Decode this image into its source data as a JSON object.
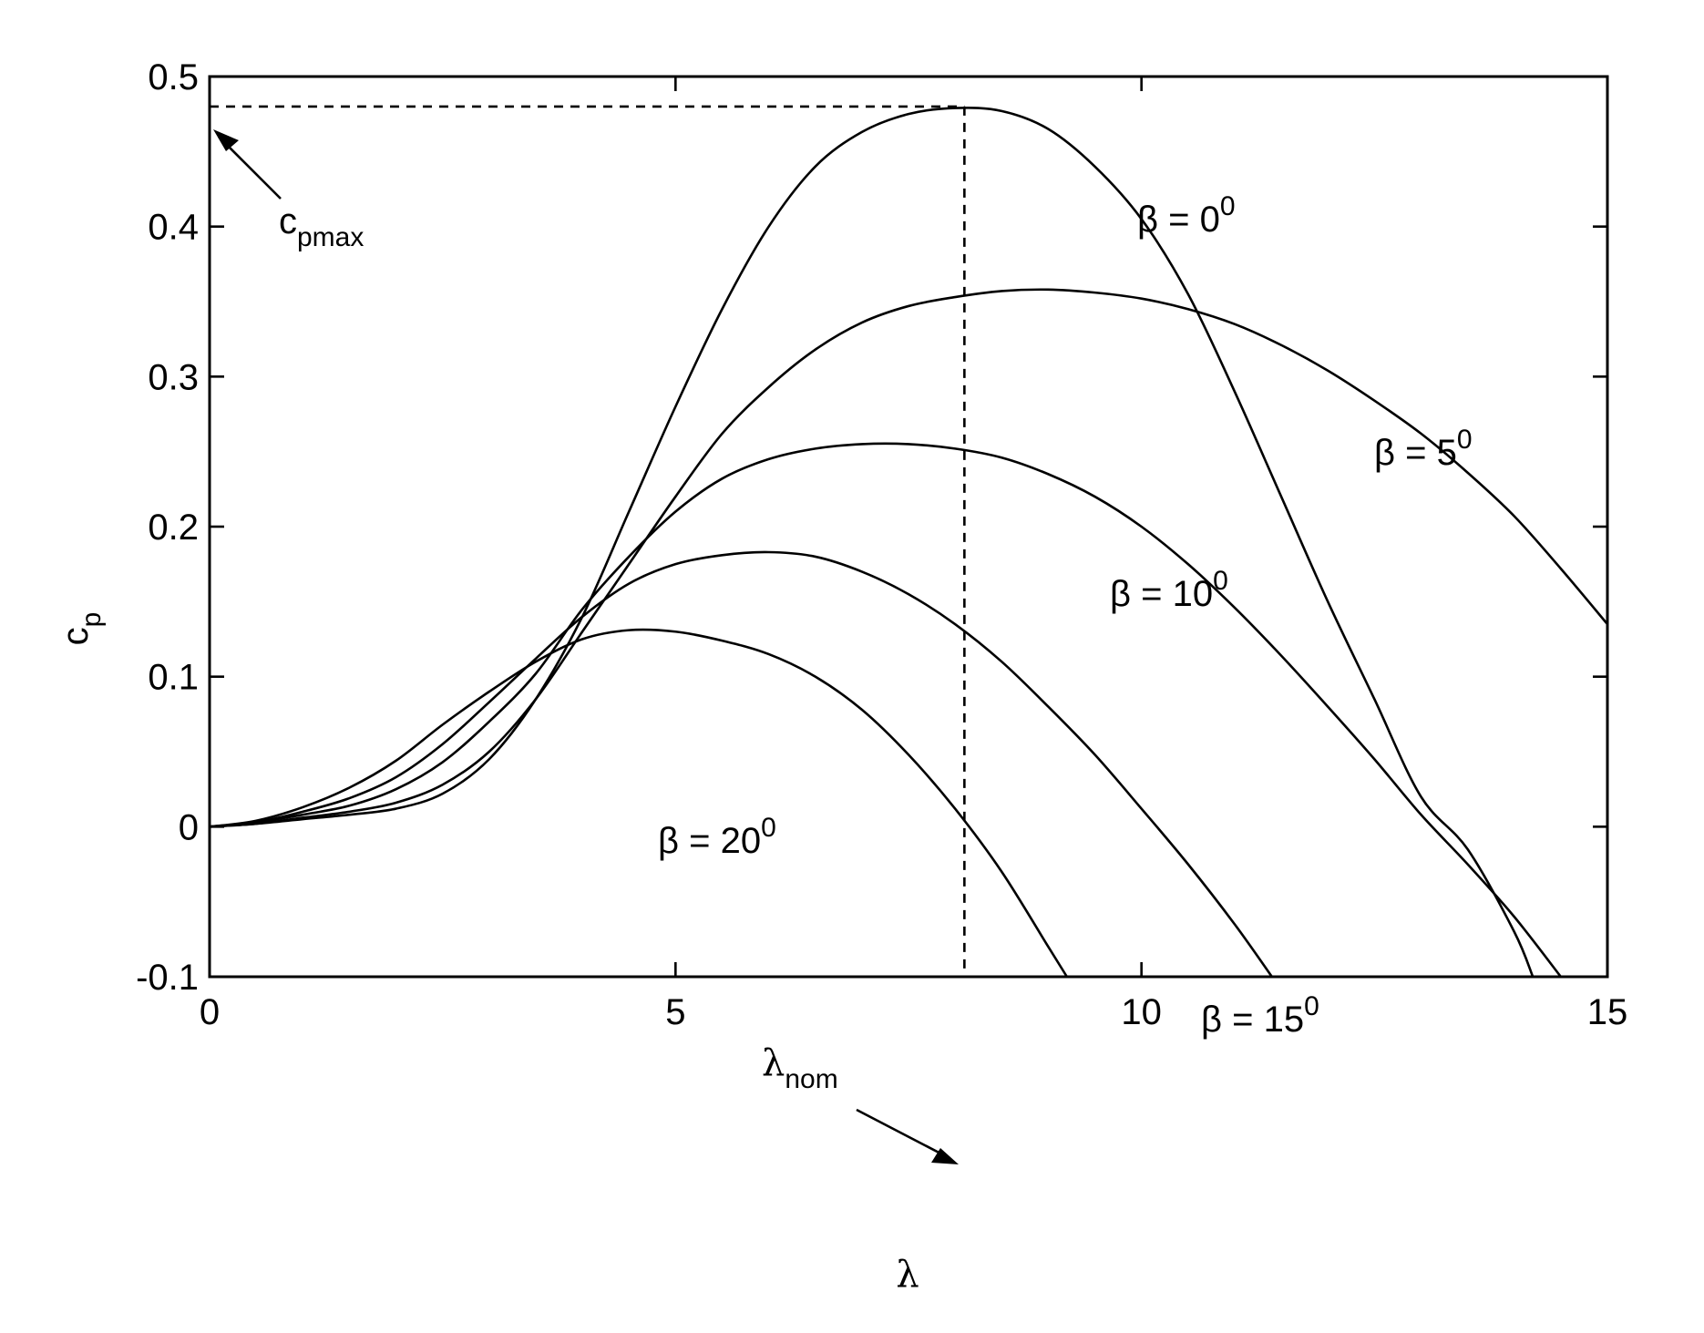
{
  "chart_data": {
    "type": "line",
    "xlabel": "λ",
    "ylabel": "c",
    "ylabel_subscript": "p",
    "xlim": [
      0,
      15
    ],
    "ylim": [
      -0.1,
      0.5
    ],
    "xticks": [
      0,
      5,
      10,
      15
    ],
    "xtick_labels": [
      "0",
      "5",
      "10",
      "15"
    ],
    "yticks": [
      -0.1,
      0,
      0.1,
      0.2,
      0.3,
      0.4,
      0.5
    ],
    "ytick_labels": [
      "-0.1",
      "0",
      "0.1",
      "0.2",
      "0.3",
      "0.4",
      "0.5"
    ],
    "grid": false,
    "series": [
      {
        "name": "β = 0",
        "label_base": "β = 0",
        "label_sup": "0",
        "points": [
          [
            0,
            0
          ],
          [
            0.5,
            0.002
          ],
          [
            1,
            0.005
          ],
          [
            1.5,
            0.008
          ],
          [
            2,
            0.012
          ],
          [
            2.5,
            0.022
          ],
          [
            3,
            0.045
          ],
          [
            3.5,
            0.085
          ],
          [
            4,
            0.14
          ],
          [
            4.5,
            0.21
          ],
          [
            5,
            0.28
          ],
          [
            5.5,
            0.345
          ],
          [
            6,
            0.4
          ],
          [
            6.5,
            0.44
          ],
          [
            7,
            0.463
          ],
          [
            7.5,
            0.475
          ],
          [
            8,
            0.479
          ],
          [
            8.5,
            0.477
          ],
          [
            9,
            0.465
          ],
          [
            9.5,
            0.44
          ],
          [
            10,
            0.405
          ],
          [
            10.5,
            0.355
          ],
          [
            11,
            0.29
          ],
          [
            11.5,
            0.22
          ],
          [
            12,
            0.15
          ],
          [
            12.5,
            0.085
          ],
          [
            13,
            0.02
          ],
          [
            13.5,
            -0.015
          ],
          [
            14,
            -0.07
          ],
          [
            14.2,
            -0.1
          ]
        ]
      },
      {
        "name": "β = 5",
        "label_base": "β = 5",
        "label_sup": "0",
        "points": [
          [
            0,
            0
          ],
          [
            0.5,
            0.002
          ],
          [
            1,
            0.006
          ],
          [
            1.5,
            0.01
          ],
          [
            2,
            0.016
          ],
          [
            2.5,
            0.028
          ],
          [
            3,
            0.05
          ],
          [
            3.5,
            0.085
          ],
          [
            4,
            0.13
          ],
          [
            4.5,
            0.175
          ],
          [
            5,
            0.22
          ],
          [
            5.5,
            0.262
          ],
          [
            6,
            0.293
          ],
          [
            6.5,
            0.318
          ],
          [
            7,
            0.336
          ],
          [
            7.5,
            0.347
          ],
          [
            8,
            0.353
          ],
          [
            8.5,
            0.357
          ],
          [
            9,
            0.358
          ],
          [
            9.5,
            0.356
          ],
          [
            10,
            0.352
          ],
          [
            10.5,
            0.345
          ],
          [
            11,
            0.335
          ],
          [
            11.5,
            0.321
          ],
          [
            12,
            0.304
          ],
          [
            12.5,
            0.284
          ],
          [
            13,
            0.262
          ],
          [
            13.5,
            0.236
          ],
          [
            14,
            0.207
          ],
          [
            14.5,
            0.172
          ],
          [
            15,
            0.135
          ]
        ]
      },
      {
        "name": "β = 10",
        "label_base": "β = 10",
        "label_sup": "0",
        "points": [
          [
            0,
            0
          ],
          [
            0.5,
            0.003
          ],
          [
            1,
            0.008
          ],
          [
            1.5,
            0.014
          ],
          [
            2,
            0.025
          ],
          [
            2.5,
            0.043
          ],
          [
            3,
            0.07
          ],
          [
            3.5,
            0.102
          ],
          [
            4,
            0.145
          ],
          [
            4.5,
            0.18
          ],
          [
            5,
            0.21
          ],
          [
            5.5,
            0.232
          ],
          [
            6,
            0.245
          ],
          [
            6.5,
            0.252
          ],
          [
            7,
            0.255
          ],
          [
            7.5,
            0.255
          ],
          [
            8,
            0.252
          ],
          [
            8.5,
            0.246
          ],
          [
            9,
            0.235
          ],
          [
            9.5,
            0.22
          ],
          [
            10,
            0.2
          ],
          [
            10.5,
            0.175
          ],
          [
            11,
            0.146
          ],
          [
            11.5,
            0.114
          ],
          [
            12,
            0.08
          ],
          [
            12.5,
            0.045
          ],
          [
            13,
            0.008
          ],
          [
            13.5,
            -0.025
          ],
          [
            14,
            -0.06
          ],
          [
            14.5,
            -0.1
          ]
        ]
      },
      {
        "name": "β = 15",
        "label_base": "β = 15",
        "label_sup": "0",
        "points": [
          [
            0,
            0
          ],
          [
            0.5,
            0.003
          ],
          [
            1,
            0.01
          ],
          [
            1.5,
            0.019
          ],
          [
            2,
            0.033
          ],
          [
            2.5,
            0.055
          ],
          [
            3,
            0.083
          ],
          [
            3.5,
            0.112
          ],
          [
            4,
            0.14
          ],
          [
            4.5,
            0.162
          ],
          [
            5,
            0.175
          ],
          [
            5.5,
            0.181
          ],
          [
            6,
            0.183
          ],
          [
            6.5,
            0.18
          ],
          [
            7,
            0.17
          ],
          [
            7.5,
            0.155
          ],
          [
            8,
            0.135
          ],
          [
            8.5,
            0.11
          ],
          [
            9,
            0.08
          ],
          [
            9.5,
            0.048
          ],
          [
            10,
            0.012
          ],
          [
            10.5,
            -0.025
          ],
          [
            11,
            -0.065
          ],
          [
            11.4,
            -0.1
          ]
        ]
      },
      {
        "name": "β = 20",
        "label_base": "β = 20",
        "label_sup": "0",
        "points": [
          [
            0,
            0
          ],
          [
            0.5,
            0.004
          ],
          [
            1,
            0.013
          ],
          [
            1.5,
            0.026
          ],
          [
            2,
            0.044
          ],
          [
            2.5,
            0.068
          ],
          [
            3,
            0.09
          ],
          [
            3.5,
            0.11
          ],
          [
            4,
            0.125
          ],
          [
            4.5,
            0.131
          ],
          [
            5,
            0.13
          ],
          [
            5.5,
            0.124
          ],
          [
            6,
            0.115
          ],
          [
            6.5,
            0.1
          ],
          [
            7,
            0.078
          ],
          [
            7.5,
            0.048
          ],
          [
            8,
            0.012
          ],
          [
            8.5,
            -0.03
          ],
          [
            9,
            -0.08
          ],
          [
            9.2,
            -0.1
          ]
        ]
      }
    ],
    "annotations": {
      "cpmax_label": "c",
      "cpmax_sub": "pmax",
      "cpmax_value": 0.48,
      "lambda_nom_label": "λ",
      "lambda_nom_sub": "nom",
      "lambda_nom_value": 8.1
    }
  }
}
